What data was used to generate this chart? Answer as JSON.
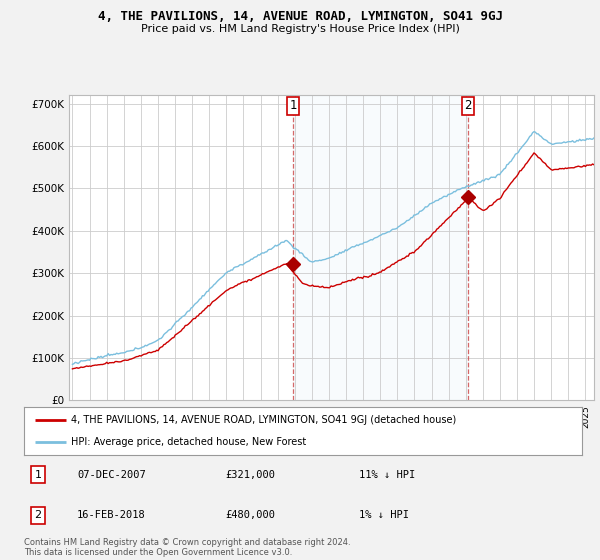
{
  "title": "4, THE PAVILIONS, 14, AVENUE ROAD, LYMINGTON, SO41 9GJ",
  "subtitle": "Price paid vs. HM Land Registry's House Price Index (HPI)",
  "ylabel_ticks": [
    "£0",
    "£100K",
    "£200K",
    "£300K",
    "£400K",
    "£500K",
    "£600K",
    "£700K"
  ],
  "ytick_vals": [
    0,
    100000,
    200000,
    300000,
    400000,
    500000,
    600000,
    700000
  ],
  "ylim": [
    0,
    720000
  ],
  "xlim_start": 1994.8,
  "xlim_end": 2025.5,
  "hpi_color": "#7bbfde",
  "hpi_fill_color": "#daeef8",
  "price_color": "#cc0000",
  "marker_color": "#aa0000",
  "sale1_x": 2007.92,
  "sale1_y": 321000,
  "sale2_x": 2018.12,
  "sale2_y": 480000,
  "legend_property": "4, THE PAVILIONS, 14, AVENUE ROAD, LYMINGTON, SO41 9GJ (detached house)",
  "legend_hpi": "HPI: Average price, detached house, New Forest",
  "table_rows": [
    {
      "num": "1",
      "date": "07-DEC-2007",
      "price": "£321,000",
      "hpi": "11% ↓ HPI"
    },
    {
      "num": "2",
      "date": "16-FEB-2018",
      "price": "£480,000",
      "hpi": "1% ↓ HPI"
    }
  ],
  "footnote": "Contains HM Land Registry data © Crown copyright and database right 2024.\nThis data is licensed under the Open Government Licence v3.0.",
  "bg_color": "#f2f2f2",
  "plot_bg_color": "#ffffff",
  "grid_color": "#cccccc"
}
